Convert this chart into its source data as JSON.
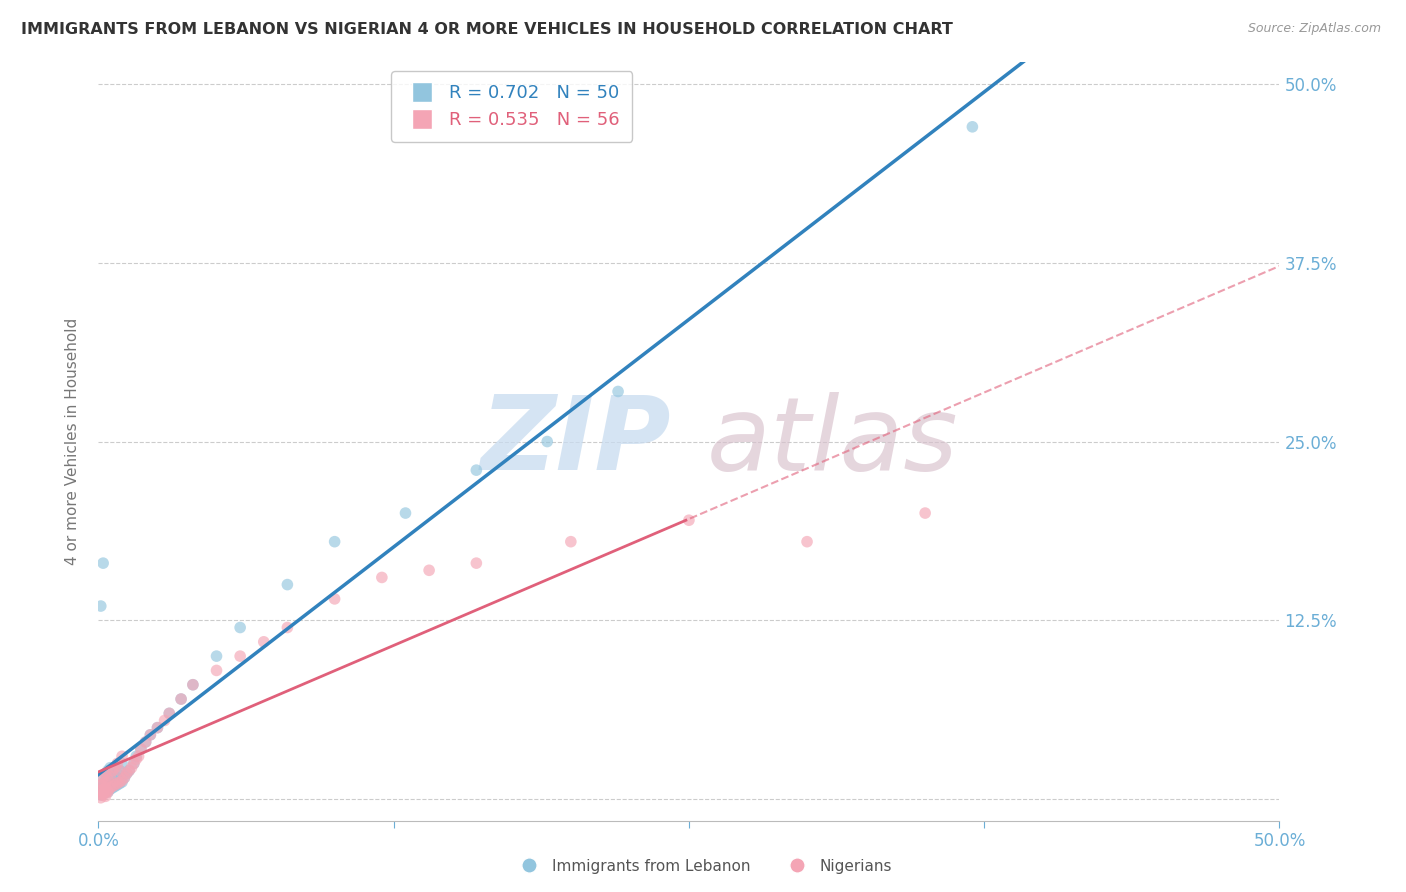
{
  "title": "IMMIGRANTS FROM LEBANON VS NIGERIAN 4 OR MORE VEHICLES IN HOUSEHOLD CORRELATION CHART",
  "source": "Source: ZipAtlas.com",
  "ylabel": "4 or more Vehicles in Household",
  "xlim": [
    0.0,
    0.5
  ],
  "ylim": [
    -0.015,
    0.515
  ],
  "yticks": [
    0.0,
    0.125,
    0.25,
    0.375,
    0.5
  ],
  "ytick_labels": [
    "",
    "12.5%",
    "25.0%",
    "37.5%",
    "50.0%"
  ],
  "xticks": [
    0.0,
    0.125,
    0.25,
    0.375,
    0.5
  ],
  "lebanon_R": 0.702,
  "lebanon_N": 50,
  "nigerian_R": 0.535,
  "nigerian_N": 56,
  "lebanon_color": "#92c5de",
  "nigerian_color": "#f4a5b5",
  "line_lebanon_color": "#3182bd",
  "line_nigerian_color": "#e0607a",
  "watermark_zip_color": "#c8dcf0",
  "watermark_atlas_color": "#d8c0cc",
  "background_color": "#ffffff",
  "grid_color": "#cccccc",
  "title_color": "#333333",
  "axis_label_color": "#777777",
  "ytick_color": "#6baed6",
  "xtick_color": "#6baed6",
  "lebanon_x": [
    0.001,
    0.001,
    0.001,
    0.002,
    0.002,
    0.002,
    0.002,
    0.003,
    0.003,
    0.003,
    0.003,
    0.004,
    0.004,
    0.004,
    0.005,
    0.005,
    0.005,
    0.006,
    0.006,
    0.007,
    0.007,
    0.008,
    0.008,
    0.009,
    0.009,
    0.01,
    0.01,
    0.011,
    0.012,
    0.013,
    0.015,
    0.016,
    0.018,
    0.02,
    0.022,
    0.025,
    0.03,
    0.035,
    0.04,
    0.05,
    0.06,
    0.08,
    0.1,
    0.13,
    0.16,
    0.19,
    0.22,
    0.001,
    0.002,
    0.37
  ],
  "lebanon_y": [
    0.005,
    0.003,
    0.008,
    0.004,
    0.007,
    0.01,
    0.015,
    0.006,
    0.009,
    0.013,
    0.018,
    0.005,
    0.011,
    0.02,
    0.007,
    0.012,
    0.022,
    0.008,
    0.014,
    0.009,
    0.016,
    0.01,
    0.018,
    0.011,
    0.02,
    0.012,
    0.025,
    0.015,
    0.018,
    0.02,
    0.025,
    0.03,
    0.035,
    0.04,
    0.045,
    0.05,
    0.06,
    0.07,
    0.08,
    0.1,
    0.12,
    0.15,
    0.18,
    0.2,
    0.23,
    0.25,
    0.285,
    0.135,
    0.165,
    0.47
  ],
  "nigerian_x": [
    0.001,
    0.001,
    0.001,
    0.002,
    0.002,
    0.002,
    0.002,
    0.003,
    0.003,
    0.003,
    0.003,
    0.004,
    0.004,
    0.005,
    0.005,
    0.006,
    0.006,
    0.007,
    0.007,
    0.008,
    0.008,
    0.009,
    0.009,
    0.01,
    0.01,
    0.011,
    0.012,
    0.013,
    0.014,
    0.015,
    0.016,
    0.017,
    0.018,
    0.02,
    0.022,
    0.025,
    0.028,
    0.03,
    0.035,
    0.04,
    0.05,
    0.06,
    0.07,
    0.08,
    0.1,
    0.12,
    0.14,
    0.16,
    0.2,
    0.25,
    0.001,
    0.002,
    0.003,
    0.004,
    0.3,
    0.35
  ],
  "nigerian_y": [
    0.003,
    0.006,
    0.01,
    0.004,
    0.007,
    0.011,
    0.015,
    0.005,
    0.008,
    0.012,
    0.018,
    0.006,
    0.014,
    0.008,
    0.016,
    0.009,
    0.02,
    0.01,
    0.022,
    0.011,
    0.025,
    0.012,
    0.02,
    0.013,
    0.03,
    0.015,
    0.018,
    0.02,
    0.022,
    0.025,
    0.028,
    0.03,
    0.035,
    0.04,
    0.045,
    0.05,
    0.055,
    0.06,
    0.07,
    0.08,
    0.09,
    0.1,
    0.11,
    0.12,
    0.14,
    0.155,
    0.16,
    0.165,
    0.18,
    0.195,
    0.001,
    0.003,
    0.002,
    0.005,
    0.18,
    0.2
  ]
}
